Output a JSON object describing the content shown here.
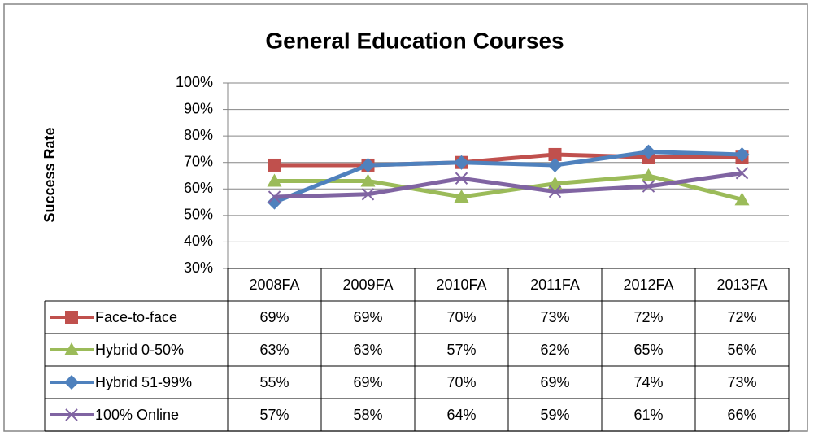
{
  "chart_data": {
    "type": "line",
    "title": "General Education Courses",
    "y_label": "Success Rate",
    "categories": [
      "2008FA",
      "2009FA",
      "2010FA",
      "2011FA",
      "2012FA",
      "2013FA"
    ],
    "series": [
      {
        "name": "Face-to-face",
        "color": "#c0504d",
        "marker": "square",
        "values": [
          69,
          69,
          70,
          73,
          72,
          72
        ],
        "value_labels": [
          "69%",
          "69%",
          "70%",
          "73%",
          "72%",
          "72%"
        ]
      },
      {
        "name": "Hybrid 0-50%",
        "color": "#9bbb59",
        "marker": "triangle",
        "values": [
          63,
          63,
          57,
          62,
          65,
          56
        ],
        "value_labels": [
          "63%",
          "63%",
          "57%",
          "62%",
          "65%",
          "56%"
        ]
      },
      {
        "name": "Hybrid 51-99%",
        "color": "#4f81bd",
        "marker": "diamond",
        "values": [
          55,
          69,
          70,
          69,
          74,
          73
        ],
        "value_labels": [
          "55%",
          "69%",
          "70%",
          "69%",
          "74%",
          "73%"
        ]
      },
      {
        "name": "100% Online",
        "color": "#8064a2",
        "marker": "x",
        "values": [
          57,
          58,
          64,
          59,
          61,
          66
        ],
        "value_labels": [
          "57%",
          "58%",
          "64%",
          "59%",
          "61%",
          "66%"
        ]
      }
    ],
    "ylim": [
      30,
      100
    ],
    "yticks": [
      {
        "value": 30,
        "label": "30%"
      },
      {
        "value": 40,
        "label": "40%"
      },
      {
        "value": 50,
        "label": "50%"
      },
      {
        "value": 60,
        "label": "60%"
      },
      {
        "value": 70,
        "label": "70%"
      },
      {
        "value": 80,
        "label": "80%"
      },
      {
        "value": 90,
        "label": "90%"
      },
      {
        "value": 100,
        "label": "100%"
      }
    ],
    "grid": true,
    "legend": "data-table"
  }
}
